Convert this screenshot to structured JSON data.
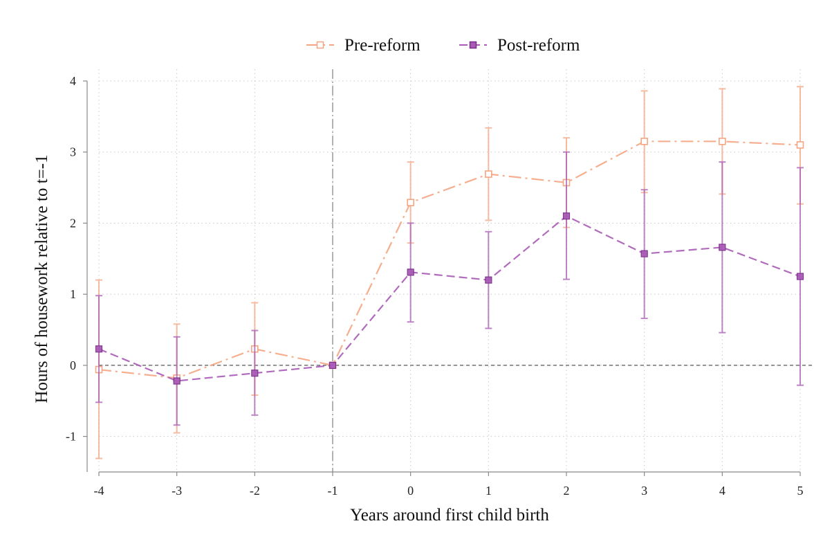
{
  "chart_data": {
    "type": "line",
    "title": "",
    "xlabel": "Years around first child birth",
    "ylabel": "Hours of housework relative to t=-1",
    "x": [
      -4,
      -3,
      -2,
      -1,
      0,
      1,
      2,
      3,
      4,
      5
    ],
    "xlim": [
      -4,
      5
    ],
    "ylim": [
      -1.5,
      4.0
    ],
    "yticks": [
      -1,
      0,
      1,
      2,
      3,
      4
    ],
    "grid": true,
    "legend_position": "top",
    "reference_lines": {
      "horizontal_y": 0,
      "vertical_x": -1
    },
    "series": [
      {
        "name": "Pre-reform",
        "color": "#f4a582",
        "marker": "hollow-square",
        "line_style": "dash-dot",
        "values": [
          -0.06,
          -0.18,
          0.23,
          0.0,
          2.29,
          2.69,
          2.57,
          3.15,
          3.15,
          3.1
        ],
        "ci_lower": [
          -1.31,
          -0.95,
          -0.42,
          0.0,
          1.72,
          2.04,
          1.94,
          2.43,
          2.41,
          2.27
        ],
        "ci_upper": [
          1.2,
          0.58,
          0.88,
          0.0,
          2.86,
          3.34,
          3.2,
          3.86,
          3.89,
          3.92
        ]
      },
      {
        "name": "Post-reform",
        "color": "#a95bb5",
        "marker": "filled-square",
        "line_style": "dashed",
        "values": [
          0.23,
          -0.22,
          -0.11,
          0.0,
          1.31,
          1.2,
          2.1,
          1.57,
          1.66,
          1.25
        ],
        "ci_lower": [
          -0.52,
          -0.84,
          -0.7,
          0.0,
          0.61,
          0.52,
          1.21,
          0.66,
          0.46,
          -0.28
        ],
        "ci_upper": [
          0.98,
          0.4,
          0.49,
          0.0,
          2.0,
          1.88,
          3.0,
          2.47,
          2.86,
          2.78
        ]
      }
    ]
  }
}
